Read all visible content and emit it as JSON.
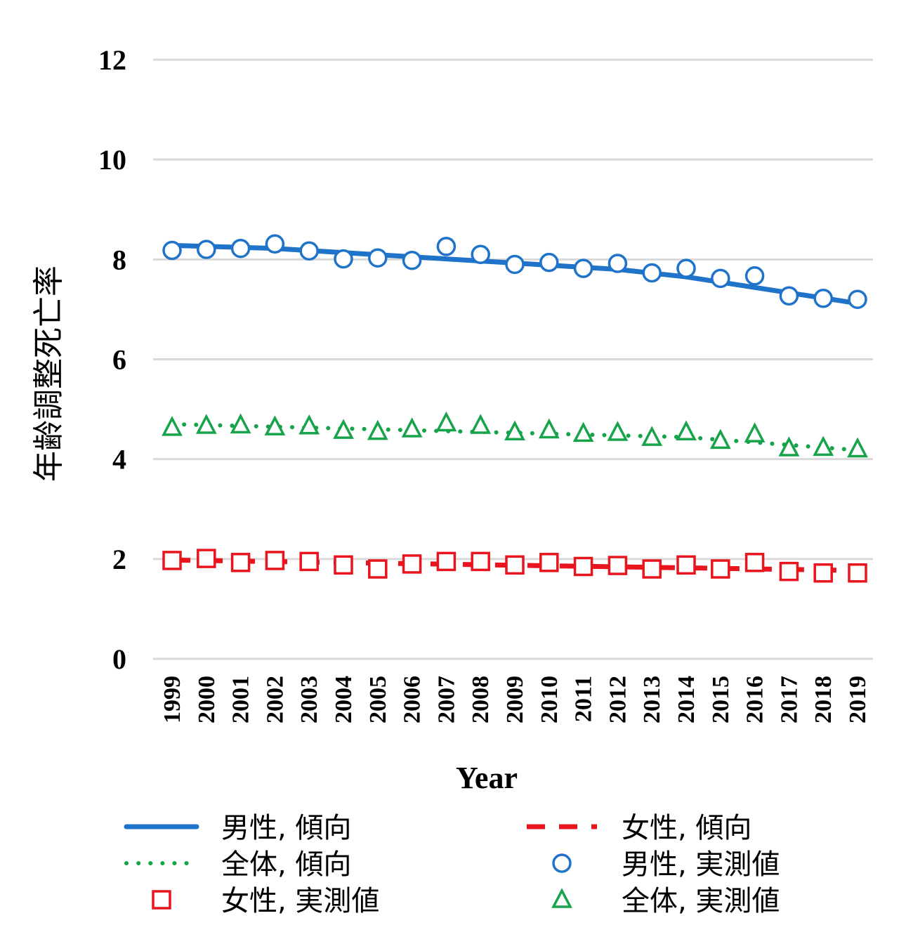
{
  "chart_data": {
    "type": "line",
    "title": "",
    "xlabel": "Year",
    "ylabel": "年齢調整死亡率",
    "ylim": [
      0,
      12
    ],
    "yticks": [
      0,
      2,
      4,
      6,
      8,
      10,
      12
    ],
    "grid": true,
    "x": [
      "1999",
      "2000",
      "2001",
      "2002",
      "2003",
      "2004",
      "2005",
      "2006",
      "2007",
      "2008",
      "2009",
      "2010",
      "2011",
      "2012",
      "2013",
      "2014",
      "2015",
      "2016",
      "2017",
      "2018",
      "2019"
    ],
    "series": [
      {
        "name": "男性, 傾向",
        "kind": "trend",
        "style": "solid",
        "color": "#1f73c8",
        "segments": [
          [
            0,
            8.28
          ],
          [
            3,
            8.22
          ],
          [
            13,
            7.8
          ],
          [
            15,
            7.65
          ],
          [
            20,
            7.12
          ]
        ]
      },
      {
        "name": "女性, 傾向",
        "kind": "trend",
        "style": "dashed",
        "color": "#e8141e",
        "segments": [
          [
            0,
            1.98
          ],
          [
            20,
            1.77
          ]
        ]
      },
      {
        "name": "全体, 傾向",
        "kind": "trend",
        "style": "dotted",
        "color": "#17a34a",
        "segments": [
          [
            0,
            4.7
          ],
          [
            15,
            4.44
          ],
          [
            20,
            4.18
          ]
        ]
      },
      {
        "name": "男性, 実測値",
        "kind": "observed",
        "marker": "circle",
        "color": "#1f73c8",
        "values": [
          8.18,
          8.2,
          8.22,
          8.31,
          8.17,
          8.01,
          8.03,
          7.98,
          8.26,
          8.1,
          7.9,
          7.94,
          7.82,
          7.92,
          7.73,
          7.82,
          7.62,
          7.67,
          7.27,
          7.22,
          7.2
        ]
      },
      {
        "name": "女性, 実測値",
        "kind": "observed",
        "marker": "square",
        "color": "#e8141e",
        "values": [
          1.97,
          2.01,
          1.93,
          1.97,
          1.95,
          1.88,
          1.8,
          1.9,
          1.95,
          1.95,
          1.88,
          1.93,
          1.85,
          1.87,
          1.8,
          1.88,
          1.8,
          1.93,
          1.75,
          1.72,
          1.72
        ]
      },
      {
        "name": "全体, 実測値",
        "kind": "observed",
        "marker": "triangle",
        "color": "#17a34a",
        "values": [
          4.63,
          4.67,
          4.68,
          4.64,
          4.66,
          4.57,
          4.55,
          4.6,
          4.72,
          4.67,
          4.54,
          4.58,
          4.51,
          4.53,
          4.43,
          4.54,
          4.37,
          4.5,
          4.22,
          4.23,
          4.2
        ]
      }
    ],
    "legend": {
      "placement": "bottom",
      "entries": [
        {
          "label": "男性, 傾向",
          "series": 0
        },
        {
          "label": "女性, 傾向",
          "series": 1
        },
        {
          "label": "全体, 傾向",
          "series": 2
        },
        {
          "label": "男性, 実測値",
          "series": 3
        },
        {
          "label": "女性, 実測値",
          "series": 4
        },
        {
          "label": "全体, 実測値",
          "series": 5
        }
      ]
    }
  }
}
